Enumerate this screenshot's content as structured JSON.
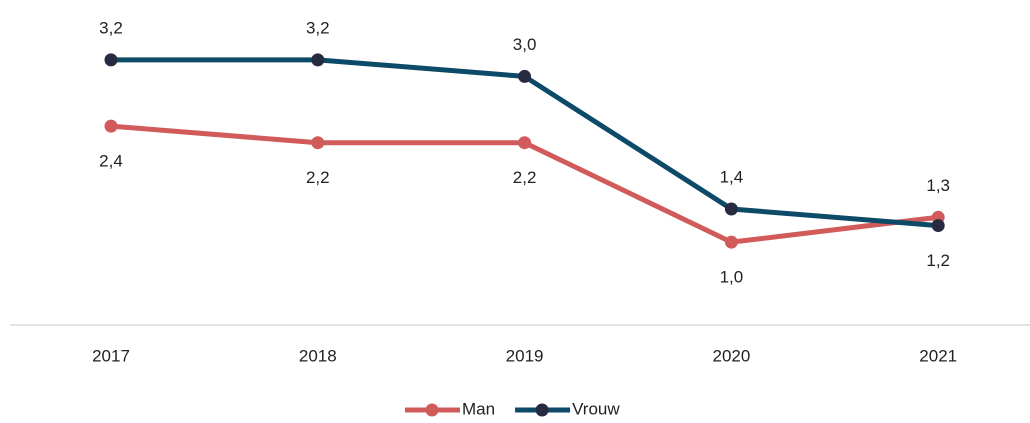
{
  "chart_data": {
    "type": "line",
    "categories": [
      "2017",
      "2018",
      "2019",
      "2020",
      "2021"
    ],
    "series": [
      {
        "name": "Man",
        "color": "#d15b5b",
        "marker_color": "#d15b5b",
        "values": [
          2.4,
          2.2,
          2.2,
          1.0,
          1.3
        ],
        "value_labels": [
          "2,4",
          "2,2",
          "2,2",
          "1,0",
          "1,3"
        ]
      },
      {
        "name": "Vrouw",
        "color": "#0d4a68",
        "marker_color": "#272b42",
        "values": [
          3.2,
          3.2,
          3.0,
          1.4,
          1.2
        ],
        "value_labels": [
          "3,2",
          "3,2",
          "3,0",
          "1,4",
          "1,2"
        ]
      }
    ],
    "ylim": [
      0,
      3.5
    ],
    "grid": false,
    "legend": "bottom"
  }
}
